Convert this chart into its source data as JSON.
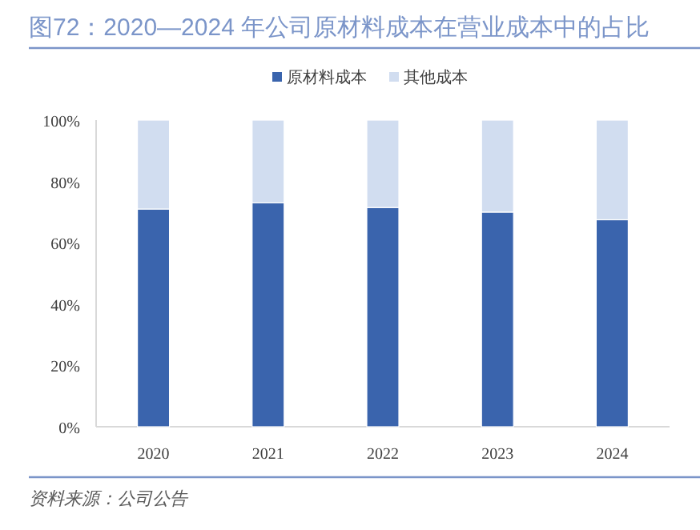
{
  "chart_data": {
    "type": "bar",
    "stacked": true,
    "title": "图72：2020—2024 年公司原材料成本在营业成本中的占比",
    "categories": [
      "2020",
      "2021",
      "2022",
      "2023",
      "2024"
    ],
    "series": [
      {
        "name": "原材料成本",
        "color": "#3a64ad",
        "values": [
          71,
          73,
          71.5,
          70,
          67.5
        ]
      },
      {
        "name": "其他成本",
        "color": "#d1ddf0",
        "values": [
          29,
          27,
          28.5,
          30,
          32.5
        ]
      }
    ],
    "ylim": [
      0,
      100
    ],
    "yticks": [
      {
        "value": 0,
        "label": "0%"
      },
      {
        "value": 20,
        "label": "20%"
      },
      {
        "value": 40,
        "label": "40%"
      },
      {
        "value": 60,
        "label": "60%"
      },
      {
        "value": 80,
        "label": "80%"
      },
      {
        "value": 100,
        "label": "100%"
      }
    ],
    "grid": false,
    "legend": "top",
    "annotations": [
      "资料来源：公司公告"
    ]
  }
}
